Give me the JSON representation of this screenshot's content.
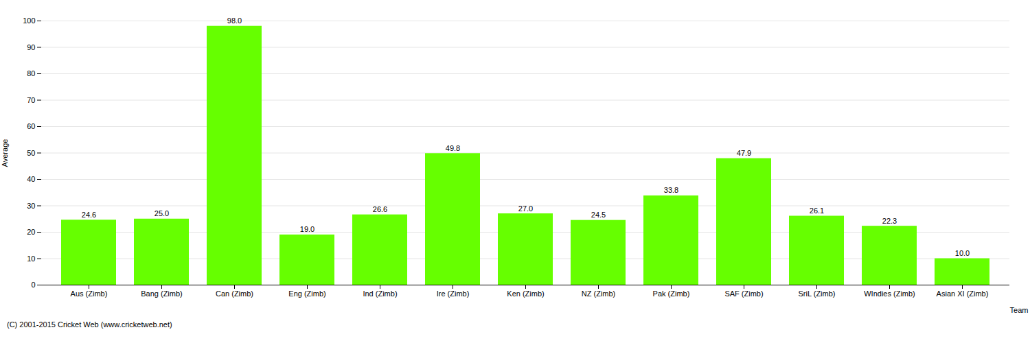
{
  "chart_data": {
    "type": "bar",
    "xlabel": "Team",
    "ylabel": "Average",
    "categories": [
      "Aus (Zimb)",
      "Bang (Zimb)",
      "Can (Zimb)",
      "Eng (Zimb)",
      "Ind (Zimb)",
      "Ire (Zimb)",
      "Ken (Zimb)",
      "NZ (Zimb)",
      "Pak (Zimb)",
      "SAF (Zimb)",
      "SriL (Zimb)",
      "WIndies (Zimb)",
      "Asian XI (Zimb)"
    ],
    "values": [
      24.6,
      25.0,
      98.0,
      19.0,
      26.6,
      49.8,
      27.0,
      24.5,
      33.8,
      47.9,
      26.1,
      22.3,
      10.0
    ],
    "value_labels": [
      "24.6",
      "25.0",
      "98.0",
      "19.0",
      "26.6",
      "49.8",
      "27.0",
      "24.5",
      "33.8",
      "47.9",
      "26.1",
      "22.3",
      "10.0"
    ],
    "data_labels": true,
    "color": "#66FF00",
    "ylim": [
      0,
      100
    ],
    "yticks": [
      0,
      10,
      20,
      30,
      40,
      50,
      60,
      70,
      80,
      90,
      100
    ],
    "grid": true,
    "footer": "(C) 2001-2015 Cricket Web (www.cricketweb.net)"
  }
}
